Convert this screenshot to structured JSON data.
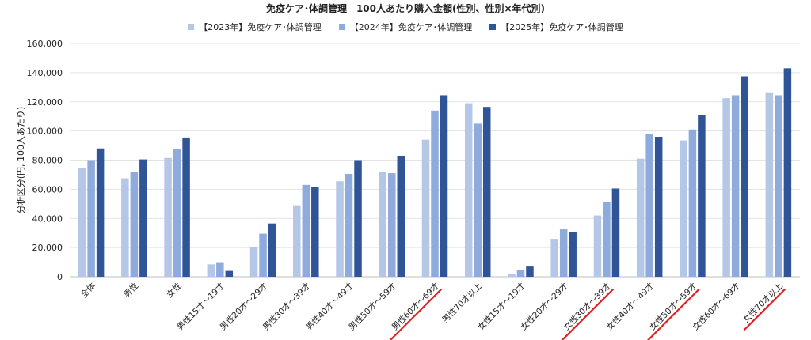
{
  "chart_data": {
    "type": "bar",
    "title": "免疫ケア･体調管理　100人あたり購入金額(性別、性別×年代別)",
    "ylabel": "分析区分(円, 100人あたり)",
    "xlabel": "",
    "ylim": [
      0,
      160000
    ],
    "yticks": [
      "0",
      "20,000",
      "40,000",
      "60,000",
      "80,000",
      "100,000",
      "120,000",
      "140,000",
      "160,000"
    ],
    "grid": true,
    "legend_position": "top",
    "categories": [
      "全体",
      "男性",
      "女性",
      "男性15才～19才",
      "男性20才～29才",
      "男性30才～39才",
      "男性40才～49才",
      "男性50才～59才",
      "男性60才～69才",
      "男性70才以上",
      "女性15才～19才",
      "女性20才～29才",
      "女性30才～39才",
      "女性40才～49才",
      "女性50才～59才",
      "女性60才～69才",
      "女性70才以上"
    ],
    "underlined_categories": [
      "男性60才～69才",
      "女性30才～39才",
      "女性50才～59才",
      "女性70才以上"
    ],
    "underline_color": "#e02020",
    "series": [
      {
        "name": "【2023年】免疫ケア･体調管理",
        "color": "#b4c7e7",
        "values": [
          74500,
          67500,
          81500,
          8500,
          20500,
          49000,
          65500,
          72000,
          94000,
          119000,
          2000,
          26000,
          42000,
          81000,
          93500,
          122500,
          126500
        ]
      },
      {
        "name": "【2024年】免疫ケア･体調管理",
        "color": "#8faadc",
        "values": [
          80000,
          72000,
          87500,
          10000,
          29500,
          63000,
          70500,
          71000,
          114000,
          105000,
          4500,
          32500,
          51000,
          98000,
          101000,
          124500,
          124500
        ]
      },
      {
        "name": "【2025年】免疫ケア･体調管理",
        "color": "#2f5597",
        "values": [
          88000,
          80500,
          95500,
          4000,
          36500,
          61500,
          80000,
          83000,
          124500,
          116500,
          7000,
          30500,
          60500,
          96000,
          111000,
          137500,
          143000
        ]
      }
    ]
  }
}
